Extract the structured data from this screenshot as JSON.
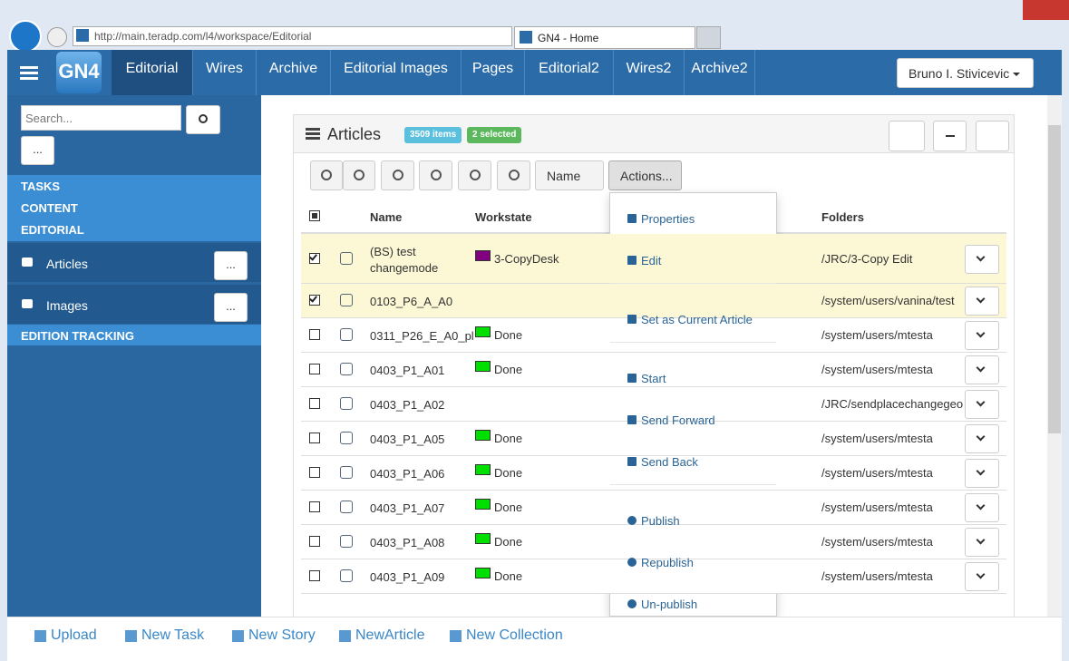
{
  "browser": {
    "url": "http://main.teradp.com/l4/workspace/Editorial",
    "tab": "GN4 - Home"
  },
  "nav": {
    "logo": "GN4",
    "tabs": [
      "Editorial",
      "Wires",
      "Archive",
      "Editorial Images",
      "Pages",
      "Editorial2",
      "Wires2",
      "Archive2"
    ],
    "active": 0,
    "user": "Bruno I. Stivicevic"
  },
  "sidebar": {
    "search_placeholder": "Search...",
    "more": "...",
    "headers": [
      "TASKS",
      "CONTENT",
      "EDITORIAL"
    ],
    "items": [
      {
        "label": "Articles",
        "button": "..."
      },
      {
        "label": "Images",
        "button": "..."
      }
    ],
    "footer_header": "EDITION TRACKING"
  },
  "panel": {
    "title": "Articles",
    "count": "3509 items",
    "selected": "2 selected",
    "sort": "Name",
    "actions": "Actions...",
    "columns": [
      "Name",
      "Workstate",
      "Folders"
    ],
    "rows": [
      {
        "checked": true,
        "name": "(BS) test changemode",
        "color": "#800080",
        "state": "3-CopyDesk",
        "folder": "/JRC/3-Copy Edit"
      },
      {
        "checked": true,
        "name": "0103_P6_A_A0",
        "color": null,
        "state": null,
        "folder": "/system/users/vanina/test"
      },
      {
        "checked": false,
        "name": "0311_P26_E_A0_pl",
        "color": "#00e000",
        "state": "Done",
        "folder": "/system/users/mtesta"
      },
      {
        "checked": false,
        "name": "0403_P1_A01",
        "color": "#00e000",
        "state": "Done",
        "folder": "/system/users/mtesta"
      },
      {
        "checked": false,
        "name": "0403_P1_A02",
        "color": null,
        "state": null,
        "folder": "/JRC/sendplacechangegeo"
      },
      {
        "checked": false,
        "name": "0403_P1_A05",
        "color": "#00e000",
        "state": "Done",
        "folder": "/system/users/mtesta"
      },
      {
        "checked": false,
        "name": "0403_P1_A06",
        "color": "#00e000",
        "state": "Done",
        "folder": "/system/users/mtesta"
      },
      {
        "checked": false,
        "name": "0403_P1_A07",
        "color": "#00e000",
        "state": "Done",
        "folder": "/system/users/mtesta"
      },
      {
        "checked": false,
        "name": "0403_P1_A08",
        "color": "#00e000",
        "state": "Done",
        "folder": "/system/users/mtesta"
      },
      {
        "checked": false,
        "name": "0403_P1_A09",
        "color": "#00e000",
        "state": "Done",
        "folder": "/system/users/mtesta"
      }
    ]
  },
  "menu": [
    [
      "Properties",
      "Edit"
    ],
    [
      "Set as Current Article"
    ],
    [
      "Start",
      "Send Forward",
      "Send Back"
    ],
    [
      "Publish",
      "Republish",
      "Un-publish"
    ]
  ],
  "footer": [
    "Upload",
    "New Task",
    "New Story",
    "NewArticle",
    "New Collection"
  ]
}
